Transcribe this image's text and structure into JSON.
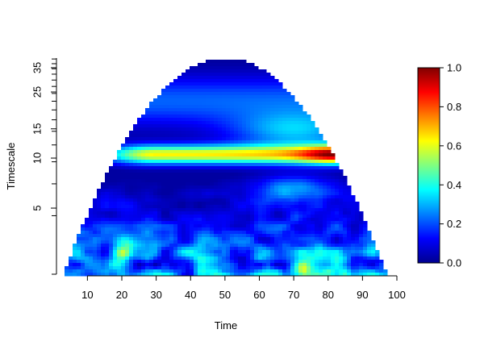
{
  "chart_data": {
    "type": "heatmap",
    "title": "",
    "xlabel": "Time",
    "ylabel": "Timescale",
    "x_ticks": [
      10,
      20,
      30,
      40,
      50,
      60,
      70,
      80,
      90,
      100
    ],
    "y_ticks": [
      5,
      10,
      15,
      25,
      35
    ],
    "x_range": [
      1,
      100
    ],
    "y_range_log": [
      2,
      40
    ],
    "colorbar": {
      "range": [
        0,
        1
      ],
      "ticks": [
        "0.0",
        "0.2",
        "0.4",
        "0.6",
        "0.8",
        "1.0"
      ],
      "colors": [
        "#00008f",
        "#0000ff",
        "#0080ff",
        "#00ffff",
        "#80ff80",
        "#ffff00",
        "#ff8000",
        "#ff0000",
        "#800000"
      ]
    },
    "cone": {
      "apex_time": 50,
      "apex_scale": 40,
      "base_min_time": 3,
      "base_max_time": 97
    },
    "features": [
      {
        "label": "strong band",
        "scale_center": 10.5,
        "scale_width": 1.5,
        "time_from": 30,
        "time_to": 90,
        "peak_time": 82,
        "peak_value": 0.98
      }
    ],
    "grid": false,
    "legend": "right"
  }
}
